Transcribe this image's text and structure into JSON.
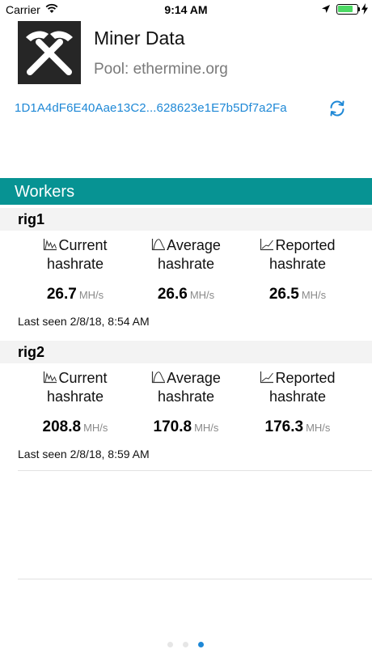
{
  "status_bar": {
    "carrier": "Carrier",
    "time": "9:14 AM",
    "battery_color": "#4cd964"
  },
  "header": {
    "title": "Miner Data",
    "pool": "Pool: ethermine.org",
    "address": "1D1A4dF6E40Aae13C2...628623e1E7b5Df7a2Fa"
  },
  "workers_section": {
    "title": "Workers"
  },
  "workers": [
    {
      "name": "rig1",
      "current": {
        "label1": "Current",
        "label2": "hashrate",
        "value": "26.7",
        "unit": "MH/s"
      },
      "average": {
        "label1": "Average",
        "label2": "hashrate",
        "value": "26.6",
        "unit": "MH/s"
      },
      "reported": {
        "label1": "Reported",
        "label2": "hashrate",
        "value": "26.5",
        "unit": "MH/s"
      },
      "last_seen": "Last seen 2/8/18, 8:54 AM"
    },
    {
      "name": "rig2",
      "current": {
        "label1": "Current",
        "label2": "hashrate",
        "value": "208.8",
        "unit": "MH/s"
      },
      "average": {
        "label1": "Average",
        "label2": "hashrate",
        "value": "170.8",
        "unit": "MH/s"
      },
      "reported": {
        "label1": "Reported",
        "label2": "hashrate",
        "value": "176.3",
        "unit": "MH/s"
      },
      "last_seen": "Last seen 2/8/18, 8:59 AM"
    }
  ],
  "colors": {
    "accent": "#079393",
    "link": "#1e88d6",
    "row_bg": "#f3f3f3"
  },
  "icons": [
    "wifi-icon",
    "location-arrow-icon",
    "battery-icon",
    "charging-bolt-icon",
    "pickaxes-icon",
    "refresh-icon",
    "current-chart-icon",
    "average-chart-icon",
    "reported-chart-icon"
  ],
  "pagination": {
    "pages": 3,
    "current": 3
  }
}
